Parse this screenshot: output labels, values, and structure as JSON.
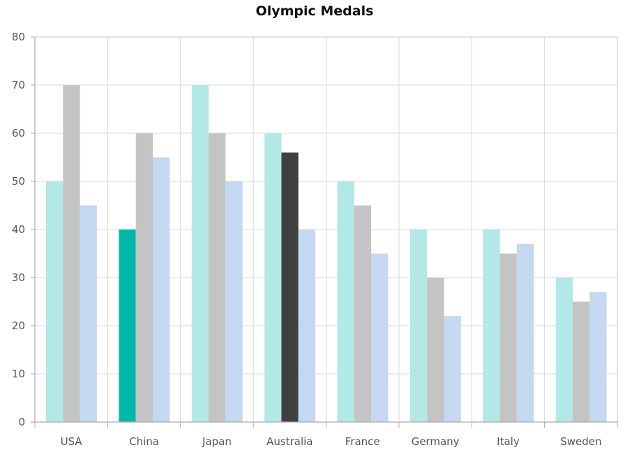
{
  "chart_data": {
    "type": "bar",
    "title": "Olympic Medals",
    "categories": [
      "USA",
      "China",
      "Japan",
      "Australia",
      "France",
      "Germany",
      "Italy",
      "Sweden"
    ],
    "series": [
      {
        "values": [
          50,
          40,
          70,
          60,
          50,
          40,
          40,
          30
        ],
        "color": "#b2e8e6"
      },
      {
        "values": [
          70,
          60,
          60,
          56,
          45,
          30,
          35,
          25
        ],
        "color": "#c4c4c4"
      },
      {
        "values": [
          45,
          55,
          50,
          40,
          35,
          22,
          37,
          27
        ],
        "color": "#c4d8f2"
      }
    ],
    "highlighted": [
      {
        "category": "China",
        "series_index": 0,
        "color": "#00b8aa"
      },
      {
        "category": "Australia",
        "series_index": 1,
        "color": "#404040"
      }
    ],
    "ylim": [
      0,
      80
    ],
    "yticks": [
      0,
      10,
      20,
      30,
      40,
      50,
      60,
      70,
      80
    ],
    "grid": true,
    "legend": "none",
    "xlabel": "",
    "ylabel": ""
  }
}
